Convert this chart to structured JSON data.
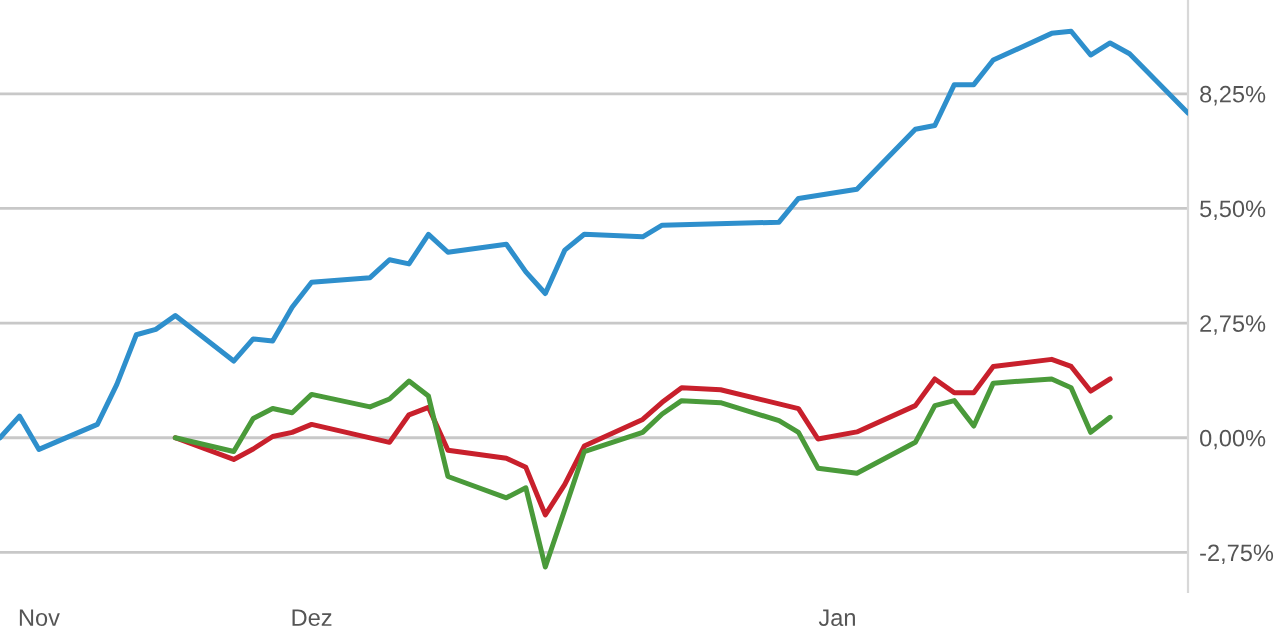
{
  "chart_data": {
    "type": "line",
    "categories": [
      null,
      null,
      "Nov",
      null,
      null,
      null,
      null,
      null,
      null,
      null,
      null,
      null,
      null,
      null,
      null,
      null,
      "Dez",
      null,
      null,
      null,
      null,
      null,
      null,
      null,
      null,
      null,
      null,
      null,
      null,
      null,
      null,
      null,
      null,
      null,
      null,
      null,
      null,
      null,
      null,
      null,
      null,
      null,
      null,
      "Jan",
      null,
      null,
      null,
      null,
      null,
      null,
      null,
      null,
      null,
      null,
      null,
      null,
      null,
      null,
      null,
      null,
      null,
      null
    ],
    "ylim": [
      -3.7,
      10.5
    ],
    "yticks": [
      {
        "value": -2.75,
        "label": "-2,75%"
      },
      {
        "value": 0,
        "label": "0,00%"
      },
      {
        "value": 2.75,
        "label": "2,75%"
      },
      {
        "value": 5.5,
        "label": "5,50%"
      },
      {
        "value": 8.25,
        "label": "8,25%"
      }
    ],
    "grid": "y",
    "legend": false,
    "series": [
      {
        "color": "#2e8fcc",
        "values": [
          0,
          0.52,
          -0.28,
          null,
          null,
          0.32,
          1.28,
          2.47,
          2.6,
          2.93,
          null,
          null,
          1.84,
          2.37,
          2.32,
          3.13,
          3.73,
          null,
          null,
          3.84,
          4.27,
          4.17,
          4.88,
          4.45,
          null,
          null,
          4.64,
          3.98,
          3.46,
          4.5,
          4.88,
          null,
          null,
          4.82,
          5.1,
          null,
          null,
          null,
          null,
          null,
          5.17,
          5.74,
          null,
          null,
          5.96,
          null,
          null,
          7.4,
          7.49,
          8.47,
          8.47,
          9.06,
          null,
          null,
          9.7,
          9.75,
          9.18,
          9.47,
          9.21,
          null,
          null,
          7.79
        ]
      },
      {
        "color": "#c8202c",
        "values": [
          null,
          null,
          null,
          null,
          null,
          null,
          null,
          null,
          null,
          0,
          null,
          null,
          -0.52,
          -0.27,
          0.03,
          0.13,
          0.32,
          null,
          null,
          null,
          -0.11,
          0.55,
          0.73,
          -0.3,
          null,
          null,
          -0.49,
          -0.71,
          -1.85,
          -1.12,
          -0.2,
          null,
          null,
          0.44,
          0.85,
          1.2,
          null,
          1.15,
          null,
          null,
          null,
          0.7,
          -0.03,
          null,
          0.14,
          null,
          null,
          0.77,
          1.41,
          1.08,
          1.08,
          1.71,
          null,
          null,
          1.88,
          1.71,
          1.12,
          1.41,
          null,
          null,
          null,
          null
        ]
      },
      {
        "color": "#4a9a3a",
        "values": [
          null,
          null,
          null,
          null,
          null,
          null,
          null,
          null,
          null,
          0,
          null,
          null,
          -0.33,
          0.46,
          0.7,
          0.6,
          1.04,
          null,
          null,
          0.74,
          0.93,
          1.36,
          1.0,
          -0.93,
          null,
          null,
          -1.44,
          -1.2,
          -3.1,
          -1.72,
          -0.33,
          null,
          null,
          0.13,
          0.57,
          0.89,
          null,
          0.84,
          null,
          null,
          0.41,
          0.13,
          -0.73,
          null,
          -0.85,
          null,
          null,
          -0.11,
          0.77,
          0.89,
          0.28,
          1.31,
          null,
          null,
          1.41,
          1.2,
          0.13,
          0.49,
          null,
          null,
          null,
          null
        ]
      }
    ]
  }
}
